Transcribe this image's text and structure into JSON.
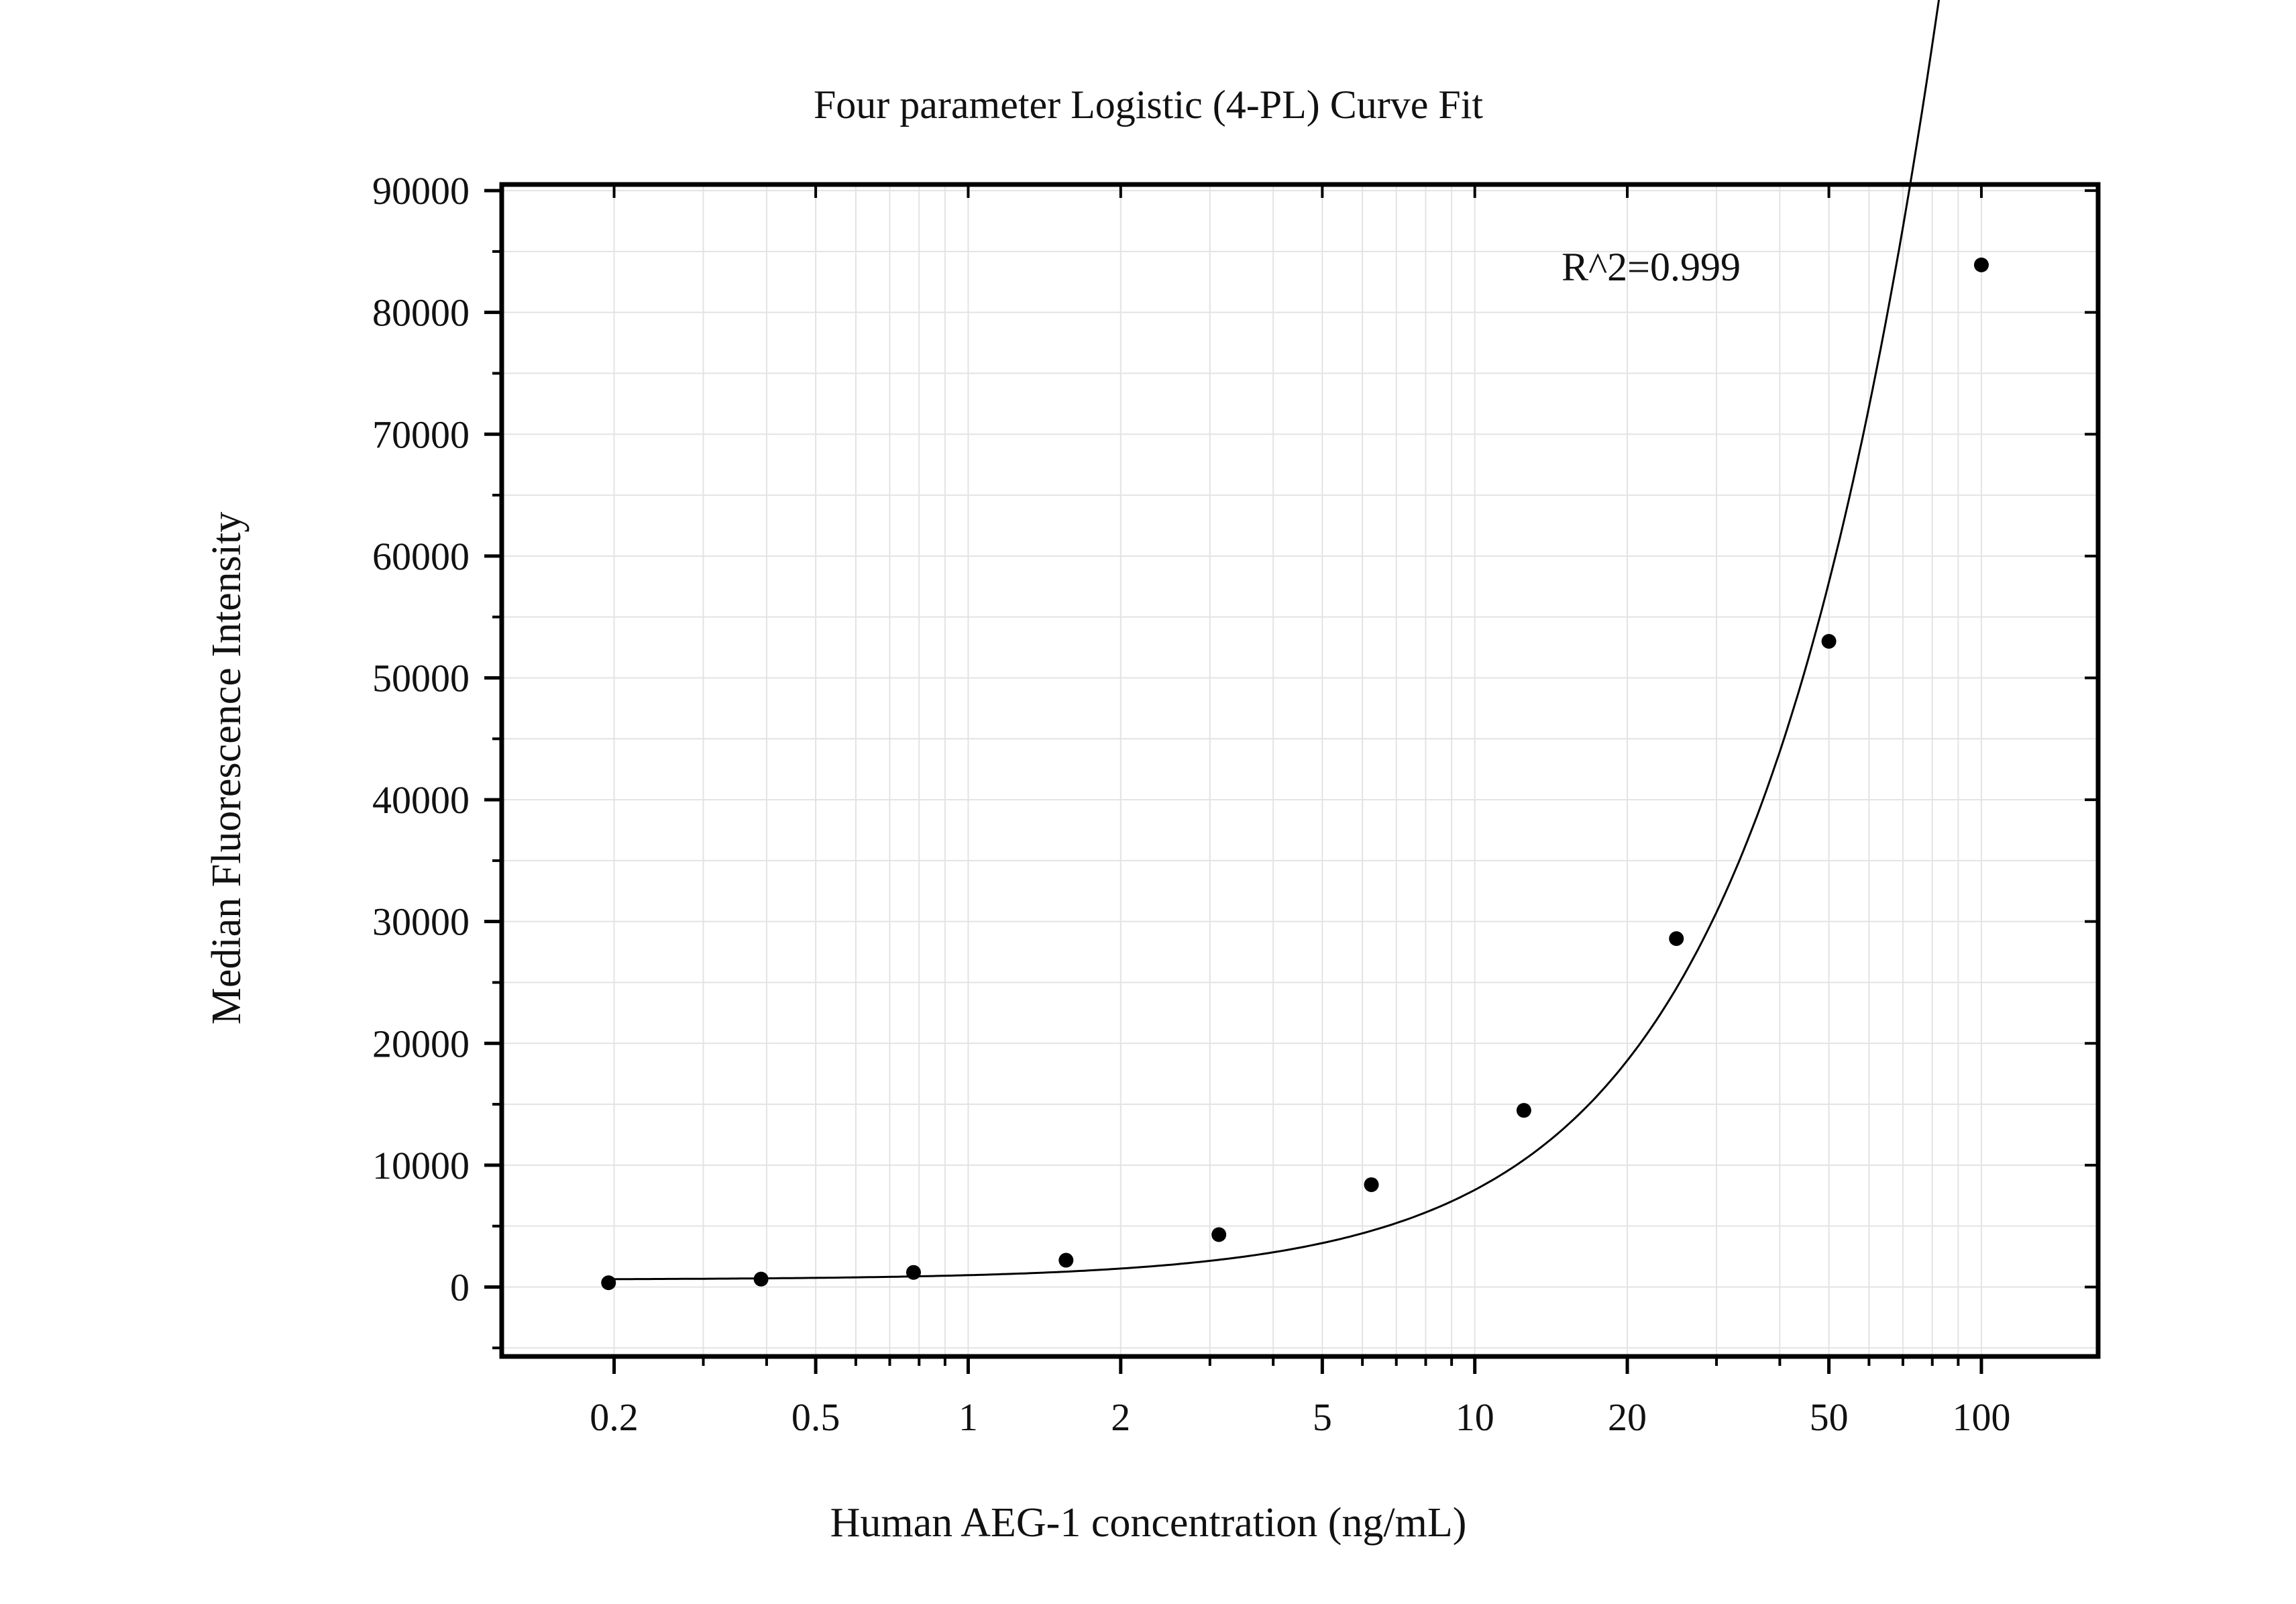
{
  "chart_data": {
    "type": "scatter",
    "title": "Four parameter Logistic (4-PL) Curve Fit",
    "xlabel": "Human AEG-1 concentration (ng/mL)",
    "ylabel": "Median Fluorescence Intensity",
    "x_scale": "log",
    "xlim": [
      0.12,
      170
    ],
    "ylim": [
      -5700,
      90500
    ],
    "x_ticks": [
      0.2,
      0.5,
      1,
      2,
      5,
      10,
      20,
      50,
      100
    ],
    "x_tick_labels": [
      "0.2",
      "0.5",
      "1",
      "2",
      "5",
      "10",
      "20",
      "50",
      "100"
    ],
    "y_ticks": [
      0,
      10000,
      20000,
      30000,
      40000,
      50000,
      60000,
      70000,
      80000,
      90000
    ],
    "y_tick_labels": [
      "0",
      "10000",
      "20000",
      "30000",
      "40000",
      "50000",
      "60000",
      "70000",
      "80000",
      "90000"
    ],
    "grid": true,
    "annotation": "R^2=0.999",
    "series": [
      {
        "kind": "points",
        "x": [
          0.195,
          0.39,
          0.78,
          1.56,
          3.125,
          6.25,
          12.5,
          25,
          50,
          100
        ],
        "y": [
          350,
          650,
          1200,
          2200,
          4300,
          8400,
          14500,
          28600,
          53000,
          83900
        ]
      },
      {
        "kind": "fit-curve",
        "model": "4PL",
        "params": {
          "a": 600,
          "b": 1.3,
          "c": 500,
          "d": 1200000
        }
      }
    ],
    "colors": {
      "points": "#000000",
      "curve": "#000000",
      "grid": "#e3e3e3",
      "axes": "#000000"
    }
  }
}
